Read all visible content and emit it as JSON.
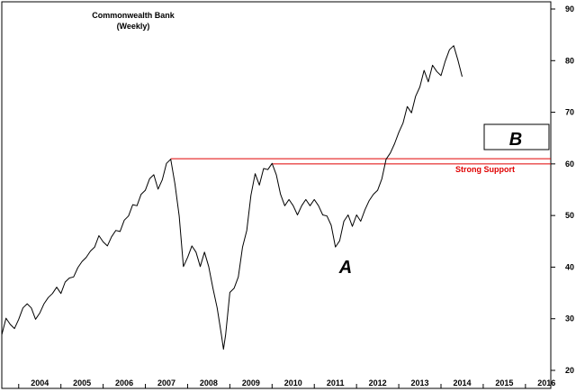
{
  "chart_data": {
    "type": "line",
    "title": "Commonwealth Bank",
    "subtitle": "(Weekly)",
    "xlabel": "",
    "ylabel": "",
    "x_tick_labels": [
      "2004",
      "2005",
      "2006",
      "2007",
      "2008",
      "2009",
      "2010",
      "2011",
      "2012",
      "2013",
      "2014",
      "2015",
      "2016"
    ],
    "y_ticks": [
      20,
      30,
      40,
      50,
      60,
      70,
      80,
      90
    ],
    "xlim": [
      2003.6,
      2016.6
    ],
    "ylim": [
      20,
      90
    ],
    "y_axis_position": "right",
    "grid": false,
    "series": [
      {
        "color": "#000000",
        "x": [
          2003.6,
          2003.7,
          2003.8,
          2003.9,
          2004.0,
          2004.1,
          2004.2,
          2004.3,
          2004.4,
          2004.5,
          2004.6,
          2004.7,
          2004.8,
          2004.9,
          2005.0,
          2005.1,
          2005.2,
          2005.3,
          2005.4,
          2005.5,
          2005.6,
          2005.7,
          2005.8,
          2005.9,
          2006.0,
          2006.1,
          2006.2,
          2006.3,
          2006.4,
          2006.5,
          2006.6,
          2006.7,
          2006.8,
          2006.9,
          2007.0,
          2007.1,
          2007.2,
          2007.3,
          2007.4,
          2007.5,
          2007.6,
          2007.7,
          2007.8,
          2007.9,
          2008.0,
          2008.1,
          2008.2,
          2008.3,
          2008.4,
          2008.5,
          2008.6,
          2008.7,
          2008.8,
          2008.85,
          2008.9,
          2009.0,
          2009.1,
          2009.2,
          2009.3,
          2009.4,
          2009.5,
          2009.6,
          2009.7,
          2009.8,
          2009.9,
          2010.0,
          2010.1,
          2010.2,
          2010.3,
          2010.4,
          2010.5,
          2010.6,
          2010.7,
          2010.8,
          2010.9,
          2011.0,
          2011.1,
          2011.2,
          2011.3,
          2011.4,
          2011.5,
          2011.6,
          2011.7,
          2011.8,
          2011.9,
          2012.0,
          2012.1,
          2012.2,
          2012.3,
          2012.4,
          2012.5,
          2012.6,
          2012.7,
          2012.8,
          2012.9,
          2013.0,
          2013.1,
          2013.2,
          2013.3,
          2013.4,
          2013.5,
          2013.6,
          2013.7,
          2013.8,
          2013.9,
          2014.0,
          2014.1,
          2014.2,
          2014.3,
          2014.4,
          2014.5
        ],
        "y": [
          27,
          30,
          29,
          28,
          30,
          32,
          33,
          32,
          30,
          31,
          33,
          34,
          35,
          36,
          35,
          37,
          38,
          38,
          40,
          41,
          42,
          43,
          44,
          46,
          45,
          44,
          46,
          47,
          47,
          49,
          50,
          52,
          52,
          54,
          55,
          57,
          58,
          55,
          57,
          60,
          61,
          56,
          50,
          40,
          42,
          44,
          43,
          40,
          43,
          40,
          36,
          32,
          27,
          24,
          27,
          35,
          36,
          38,
          44,
          47,
          54,
          58,
          56,
          59,
          59,
          60,
          58,
          54,
          52,
          53,
          52,
          50,
          52,
          53,
          52,
          53,
          52,
          50,
          50,
          48,
          44,
          45,
          49,
          50,
          48,
          50,
          49,
          51,
          53,
          54,
          55,
          57,
          61,
          62,
          64,
          66,
          68,
          71,
          70,
          73,
          75,
          78,
          76,
          79,
          78,
          77,
          80,
          82,
          83,
          80,
          77
        ]
      }
    ],
    "annotations": {
      "support_levels": [
        61,
        60
      ],
      "support_label": "Strong Support",
      "marker_a": "A",
      "marker_b": "B",
      "marker_a_x": 2011.5,
      "marker_a_y": 42.5
    }
  }
}
